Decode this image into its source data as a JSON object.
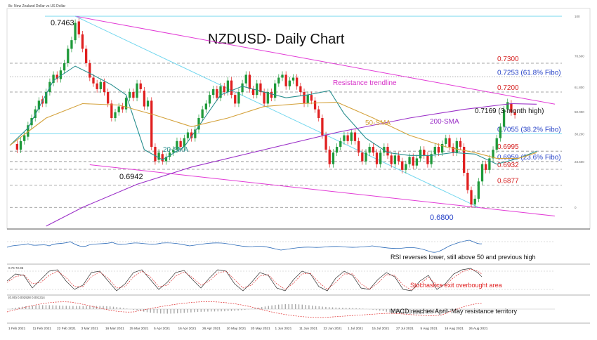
{
  "header": {
    "instrument": "8c: New Zealand Dollar vs US Dollar"
  },
  "chart_data": {
    "type": "candlestick",
    "title": "NZDUSD- Daily Chart",
    "price_range": [
      0.6725,
      0.749
    ],
    "x_range": [
      0,
      150
    ],
    "series": [
      {
        "name": "20-SMA",
        "color": "#2a8f8f",
        "points": [
          [
            0,
            0.7015
          ],
          [
            5,
            0.7075
          ],
          [
            12,
            0.724
          ],
          [
            18,
            0.729
          ],
          [
            22,
            0.7265
          ],
          [
            28,
            0.7225
          ],
          [
            32,
            0.719
          ],
          [
            37,
            0.7
          ],
          [
            42,
            0.6965
          ],
          [
            48,
            0.701
          ],
          [
            53,
            0.71
          ],
          [
            58,
            0.719
          ],
          [
            64,
            0.722
          ],
          [
            70,
            0.72
          ],
          [
            76,
            0.718
          ],
          [
            82,
            0.719
          ],
          [
            88,
            0.7205
          ],
          [
            92,
            0.7125
          ],
          [
            98,
            0.704
          ],
          [
            104,
            0.699
          ],
          [
            110,
            0.698
          ],
          [
            116,
            0.698
          ],
          [
            122,
            0.699
          ],
          [
            128,
            0.6985
          ],
          [
            134,
            0.695
          ],
          [
            140,
            0.697
          ],
          [
            145,
            0.6995
          ]
        ]
      },
      {
        "name": "50-SMA",
        "color": "#d4a23c",
        "points": [
          [
            0,
            0.7015
          ],
          [
            10,
            0.711
          ],
          [
            20,
            0.716
          ],
          [
            30,
            0.7155
          ],
          [
            40,
            0.712
          ],
          [
            50,
            0.708
          ],
          [
            60,
            0.711
          ],
          [
            70,
            0.715
          ],
          [
            80,
            0.716
          ],
          [
            90,
            0.7165
          ],
          [
            100,
            0.711
          ],
          [
            110,
            0.705
          ],
          [
            120,
            0.701
          ],
          [
            128,
            0.699
          ],
          [
            134,
            0.697
          ],
          [
            140,
            0.697
          ],
          [
            145,
            0.699
          ]
        ]
      },
      {
        "name": "200-SMA",
        "color": "#9b30c8",
        "points": [
          [
            10,
            0.6735
          ],
          [
            20,
            0.68
          ],
          [
            35,
            0.688
          ],
          [
            50,
            0.694
          ],
          [
            70,
            0.7
          ],
          [
            90,
            0.706
          ],
          [
            110,
            0.711
          ],
          [
            125,
            0.714
          ],
          [
            138,
            0.716
          ],
          [
            145,
            0.7158
          ]
        ]
      }
    ],
    "trendlines": [
      {
        "name": "Resistance trendline",
        "color": "#e23bd6",
        "points": [
          [
            18,
            0.7463
          ],
          [
            150,
            0.7158
          ]
        ]
      },
      {
        "name": "support",
        "color": "#e23bd6",
        "points": [
          [
            22,
            0.6948
          ],
          [
            150,
            0.677
          ]
        ]
      },
      {
        "name": "fib",
        "color": "#6fd6ee",
        "points": [
          [
            18,
            0.7463
          ],
          [
            129,
            0.68
          ]
        ]
      }
    ],
    "levels": [
      {
        "value": 0.73,
        "label": "0.7300",
        "style": "dashed",
        "color": "#888888"
      },
      {
        "value": 0.7253,
        "label": "0.7253 (61.8% Fibo)",
        "style": "dotted",
        "color": "#888888"
      },
      {
        "value": 0.72,
        "label": "0.7200",
        "style": "dashed",
        "color": "#888888"
      },
      {
        "value": 0.7055,
        "label": "0.7055 (38.2% Fibo)",
        "style": "solid",
        "color": "#6fd6ee"
      },
      {
        "value": 0.6995,
        "label": "0.6995",
        "style": "dashed",
        "color": "#888888"
      },
      {
        "value": 0.6959,
        "label": "0.6959 (23.6% Fibo)",
        "style": "dashed",
        "color": "#888888"
      },
      {
        "value": 0.6932,
        "label": "0.6932",
        "style": "dashed",
        "color": "#888888"
      },
      {
        "value": 0.6877,
        "label": "0.6877",
        "style": "dashed",
        "color": "#888888"
      },
      {
        "value": 0.68,
        "label": "",
        "style": "dashed",
        "color": "#888888"
      }
    ],
    "fib_axis_labels": [
      "100",
      "78.600",
      "61.800",
      "50.000",
      "38.200",
      "23.600",
      "0"
    ],
    "annotations": {
      "high": "0.7463",
      "low1": "0.6942",
      "low2": "0.6800",
      "recent_high": "0.7169 (3-month high)",
      "resistance": "Resistance trendline",
      "sma20": "20-SMA",
      "sma50": "50-SMA",
      "sma200": "200-SMA"
    },
    "candles": [
      [
        0.702,
        0.7
      ],
      [
        0.7,
        0.703
      ],
      [
        0.703,
        0.705
      ],
      [
        0.7045,
        0.7085
      ],
      [
        0.7085,
        0.711
      ],
      [
        0.711,
        0.714
      ],
      [
        0.714,
        0.717
      ],
      [
        0.7175,
        0.716
      ],
      [
        0.716,
        0.72
      ],
      [
        0.72,
        0.7235
      ],
      [
        0.7232,
        0.726
      ],
      [
        0.726,
        0.7245
      ],
      [
        0.7245,
        0.7275
      ],
      [
        0.7275,
        0.73
      ],
      [
        0.73,
        0.735
      ],
      [
        0.735,
        0.738
      ],
      [
        0.738,
        0.744
      ],
      [
        0.7445,
        0.74
      ],
      [
        0.74,
        0.735
      ],
      [
        0.735,
        0.73
      ],
      [
        0.73,
        0.725
      ],
      [
        0.725,
        0.723
      ],
      [
        0.723,
        0.721
      ],
      [
        0.721,
        0.7235
      ],
      [
        0.7235,
        0.72
      ],
      [
        0.72,
        0.716
      ],
      [
        0.716,
        0.711
      ],
      [
        0.711,
        0.713
      ],
      [
        0.713,
        0.715
      ],
      [
        0.715,
        0.714
      ],
      [
        0.714,
        0.718
      ],
      [
        0.718,
        0.72
      ],
      [
        0.72,
        0.718
      ],
      [
        0.718,
        0.723
      ],
      [
        0.723,
        0.721
      ],
      [
        0.7205,
        0.715
      ],
      [
        0.715,
        0.717
      ],
      [
        0.717,
        0.701
      ],
      [
        0.701,
        0.696
      ],
      [
        0.6965,
        0.699
      ],
      [
        0.6985,
        0.696
      ],
      [
        0.696,
        0.6975
      ],
      [
        0.6975,
        0.699
      ],
      [
        0.699,
        0.7
      ],
      [
        0.7,
        0.703
      ],
      [
        0.703,
        0.701
      ],
      [
        0.701,
        0.704
      ],
      [
        0.704,
        0.706
      ],
      [
        0.706,
        0.704
      ],
      [
        0.704,
        0.707
      ],
      [
        0.707,
        0.711
      ],
      [
        0.711,
        0.714
      ],
      [
        0.714,
        0.716
      ],
      [
        0.716,
        0.719
      ],
      [
        0.719,
        0.721
      ],
      [
        0.721,
        0.718
      ],
      [
        0.718,
        0.722
      ],
      [
        0.722,
        0.72
      ],
      [
        0.72,
        0.724
      ],
      [
        0.724,
        0.719
      ],
      [
        0.719,
        0.716
      ],
      [
        0.716,
        0.72
      ],
      [
        0.72,
        0.723
      ],
      [
        0.723,
        0.726
      ],
      [
        0.726,
        0.721
      ],
      [
        0.721,
        0.719
      ],
      [
        0.719,
        0.723
      ],
      [
        0.723,
        0.72
      ],
      [
        0.72,
        0.716
      ],
      [
        0.716,
        0.72
      ],
      [
        0.72,
        0.718
      ],
      [
        0.718,
        0.723
      ],
      [
        0.723,
        0.725
      ],
      [
        0.725,
        0.726
      ],
      [
        0.726,
        0.722
      ],
      [
        0.722,
        0.724
      ],
      [
        0.724,
        0.725
      ],
      [
        0.725,
        0.722
      ],
      [
        0.722,
        0.72
      ],
      [
        0.72,
        0.716
      ],
      [
        0.716,
        0.719
      ],
      [
        0.719,
        0.717
      ],
      [
        0.717,
        0.714
      ],
      [
        0.714,
        0.711
      ],
      [
        0.711,
        0.705
      ],
      [
        0.705,
        0.7
      ],
      [
        0.7,
        0.695
      ],
      [
        0.695,
        0.699
      ],
      [
        0.699,
        0.701
      ],
      [
        0.701,
        0.703
      ],
      [
        0.703,
        0.705
      ],
      [
        0.705,
        0.703
      ],
      [
        0.703,
        0.706
      ],
      [
        0.706,
        0.703
      ],
      [
        0.703,
        0.699
      ],
      [
        0.699,
        0.696
      ],
      [
        0.696,
        0.699
      ],
      [
        0.699,
        0.701
      ],
      [
        0.701,
        0.699
      ],
      [
        0.699,
        0.695
      ],
      [
        0.695,
        0.699
      ],
      [
        0.699,
        0.701
      ],
      [
        0.701,
        0.698
      ],
      [
        0.698,
        0.695
      ],
      [
        0.695,
        0.698
      ],
      [
        0.698,
        0.696
      ],
      [
        0.696,
        0.693
      ],
      [
        0.693,
        0.695
      ],
      [
        0.695,
        0.6975
      ],
      [
        0.6975,
        0.6945
      ],
      [
        0.6945,
        0.697
      ],
      [
        0.697,
        0.7
      ],
      [
        0.7,
        0.698
      ],
      [
        0.698,
        0.695
      ],
      [
        0.695,
        0.6985
      ],
      [
        0.6985,
        0.701
      ],
      [
        0.701,
        0.699
      ],
      [
        0.699,
        0.702
      ],
      [
        0.702,
        0.704
      ],
      [
        0.704,
        0.701
      ],
      [
        0.701,
        0.699
      ],
      [
        0.699,
        0.703
      ],
      [
        0.703,
        0.701
      ],
      [
        0.701,
        0.692
      ],
      [
        0.692,
        0.686
      ],
      [
        0.686,
        0.681
      ],
      [
        0.681,
        0.683
      ],
      [
        0.683,
        0.689
      ],
      [
        0.689,
        0.695
      ],
      [
        0.695,
        0.693
      ],
      [
        0.693,
        0.697
      ],
      [
        0.697,
        0.7
      ],
      [
        0.7,
        0.704
      ],
      [
        0.704,
        0.708
      ],
      [
        0.708,
        0.714
      ],
      [
        0.714,
        0.7165
      ],
      [
        0.716,
        0.713
      ],
      [
        0.713,
        0.712
      ]
    ]
  },
  "panels": {
    "rsi": {
      "note": "RSI reverses lower, still above 50 and previous high"
    },
    "stoch": {
      "header": "0.74 72.96",
      "note": "Stochastics exit overbought area"
    },
    "macd": {
      "header": "(0.00)  0.002928  0.001314",
      "note": "MACD reaches April- May resistance territory"
    }
  },
  "x_axis": {
    "labels": [
      "1 Feb 2021",
      "11 Feb 2021",
      "22 Feb 2021",
      "3 Mar 2021",
      "16 Mar 2021",
      "25 Mar 2021",
      "5 Apr 2021",
      "16 Apr 2021",
      "26 Apr 2021",
      "10 May 2021",
      "20 May 2021",
      "1 Jun 2021",
      "11 Jun 2021",
      "22 Jun 2021",
      "1 Jul 2021",
      "15 Jul 2021",
      "27 Jul 2021",
      "5 Aug 2021",
      "16 Aug 2021",
      "26 Aug 2021"
    ]
  }
}
